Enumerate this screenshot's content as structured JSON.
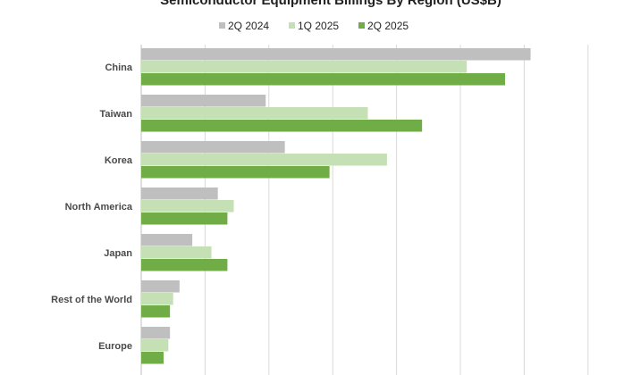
{
  "chart_data": {
    "type": "bar",
    "orientation": "horizontal",
    "title": "Semiconductor Equipment Billings By Region (US$B)",
    "categories": [
      "China",
      "Taiwan",
      "Korea",
      "North America",
      "Japan",
      "Rest of the World",
      "Europe"
    ],
    "series": [
      {
        "name": "2Q 2024",
        "color": "#bfbfbf",
        "values": [
          12.2,
          3.9,
          4.5,
          2.4,
          1.6,
          1.2,
          0.9
        ]
      },
      {
        "name": "1Q 2025",
        "color": "#c5e0b4",
        "values": [
          10.2,
          7.1,
          7.7,
          2.9,
          2.2,
          1.0,
          0.85
        ]
      },
      {
        "name": "2Q 2025",
        "color": "#70ad47",
        "values": [
          11.4,
          8.8,
          5.9,
          2.7,
          2.7,
          0.9,
          0.7
        ]
      }
    ],
    "xlim": [
      0,
      14
    ],
    "grid": true,
    "legend_position": "top"
  }
}
